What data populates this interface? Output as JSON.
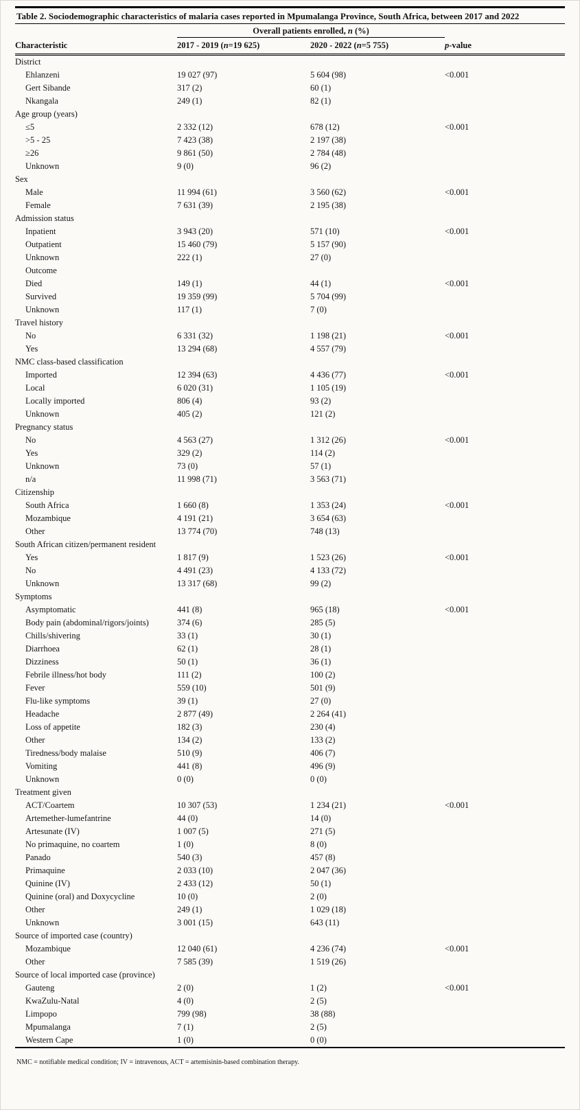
{
  "table": {
    "title": "Table 2. Sociodemographic characteristics of malaria cases reported in Mpumalanga Province, South Africa, between 2017 and 2022",
    "span_header": {
      "pre": "Overall patients enrolled, ",
      "n": "n",
      "post": " (%)"
    },
    "columns": {
      "characteristic": "Characteristic",
      "col1_pre": "2017 - 2019 (",
      "col1_n": "n",
      "col1_post": "=19 625)",
      "col2_pre": "2020 - 2022 (",
      "col2_n": "n",
      "col2_post": "=5 755)",
      "p_italic": "p",
      "p_rest": "-value"
    },
    "sections": [
      {
        "name": "District",
        "rows": [
          {
            "label": "Ehlanzeni",
            "c1": "19 027 (97)",
            "c2": "5 604 (98)",
            "p": "<0.001"
          },
          {
            "label": "Gert Sibande",
            "c1": "317 (2)",
            "c2": "60 (1)",
            "p": ""
          },
          {
            "label": "Nkangala",
            "c1": "249 (1)",
            "c2": "82 (1)",
            "p": ""
          }
        ]
      },
      {
        "name": "Age group (years)",
        "rows": [
          {
            "label": "≤5",
            "c1": "2 332 (12)",
            "c2": "678 (12)",
            "p": "<0.001"
          },
          {
            "label": ">5 - 25",
            "c1": "7 423 (38)",
            "c2": "2 197 (38)",
            "p": ""
          },
          {
            "label": "≥26",
            "c1": "9 861 (50)",
            "c2": "2 784 (48)",
            "p": ""
          },
          {
            "label": "Unknown",
            "c1": "9 (0)",
            "c2": "96 (2)",
            "p": ""
          }
        ]
      },
      {
        "name": "Sex",
        "rows": [
          {
            "label": "Male",
            "c1": "11 994 (61)",
            "c2": "3 560 (62)",
            "p": "<0.001"
          },
          {
            "label": "Female",
            "c1": "7 631 (39)",
            "c2": "2 195 (38)",
            "p": ""
          }
        ]
      },
      {
        "name": "Admission status",
        "rows": [
          {
            "label": "Inpatient",
            "c1": "3 943 (20)",
            "c2": "571 (10)",
            "p": "<0.001"
          },
          {
            "label": "Outpatient",
            "c1": "15 460 (79)",
            "c2": "5 157 (90)",
            "p": ""
          },
          {
            "label": "Unknown",
            "c1": "222 (1)",
            "c2": "27 (0)",
            "p": ""
          },
          {
            "label": "Outcome",
            "c1": "",
            "c2": "",
            "p": ""
          },
          {
            "label": "Died",
            "c1": "149 (1)",
            "c2": "44 (1)",
            "p": "<0.001"
          },
          {
            "label": "Survived",
            "c1": "19 359 (99)",
            "c2": "5 704 (99)",
            "p": ""
          },
          {
            "label": "Unknown",
            "c1": "117 (1)",
            "c2": "7 (0)",
            "p": ""
          }
        ]
      },
      {
        "name": "Travel history",
        "rows": [
          {
            "label": "No",
            "c1": "6 331 (32)",
            "c2": "1 198 (21)",
            "p": "<0.001"
          },
          {
            "label": "Yes",
            "c1": "13 294 (68)",
            "c2": "4 557 (79)",
            "p": ""
          }
        ]
      },
      {
        "name": "NMC class-based classification",
        "rows": [
          {
            "label": "Imported",
            "c1": "12 394 (63)",
            "c2": "4 436 (77)",
            "p": "<0.001"
          },
          {
            "label": "Local",
            "c1": "6 020 (31)",
            "c2": "1 105 (19)",
            "p": ""
          },
          {
            "label": "Locally imported",
            "c1": "806 (4)",
            "c2": "93 (2)",
            "p": ""
          },
          {
            "label": "Unknown",
            "c1": "405 (2)",
            "c2": "121 (2)",
            "p": ""
          }
        ]
      },
      {
        "name": "Pregnancy status",
        "rows": [
          {
            "label": "No",
            "c1": "4 563 (27)",
            "c2": "1 312 (26)",
            "p": "<0.001"
          },
          {
            "label": "Yes",
            "c1": "329 (2)",
            "c2": "114 (2)",
            "p": ""
          },
          {
            "label": "Unknown",
            "c1": "73 (0)",
            "c2": "57 (1)",
            "p": ""
          },
          {
            "label": "n/a",
            "c1": "11 998 (71)",
            "c2": "3 563 (71)",
            "p": ""
          }
        ]
      },
      {
        "name": "Citizenship",
        "rows": [
          {
            "label": "South Africa",
            "c1": "1 660 (8)",
            "c2": "1 353 (24)",
            "p": "<0.001"
          },
          {
            "label": "Mozambique",
            "c1": "4 191 (21)",
            "c2": "3 654 (63)",
            "p": ""
          },
          {
            "label": "Other",
            "c1": "13 774 (70)",
            "c2": "748 (13)",
            "p": ""
          }
        ]
      },
      {
        "name": "South African citizen/permanent resident",
        "rows": [
          {
            "label": "Yes",
            "c1": "1 817 (9)",
            "c2": "1 523 (26)",
            "p": "<0.001"
          },
          {
            "label": "No",
            "c1": "4 491 (23)",
            "c2": "4 133 (72)",
            "p": ""
          },
          {
            "label": "Unknown",
            "c1": "13 317 (68)",
            "c2": "99 (2)",
            "p": ""
          }
        ]
      },
      {
        "name": "Symptoms",
        "rows": [
          {
            "label": "Asymptomatic",
            "c1": "441 (8)",
            "c2": "965 (18)",
            "p": "<0.001"
          },
          {
            "label": "Body pain (abdominal/rigors/joints)",
            "c1": "374 (6)",
            "c2": "285 (5)",
            "p": ""
          },
          {
            "label": "Chills/shivering",
            "c1": "33 (1)",
            "c2": "30 (1)",
            "p": ""
          },
          {
            "label": "Diarrhoea",
            "c1": "62 (1)",
            "c2": "28 (1)",
            "p": ""
          },
          {
            "label": "Dizziness",
            "c1": "50 (1)",
            "c2": "36 (1)",
            "p": ""
          },
          {
            "label": "Febrile illness/hot body",
            "c1": "111 (2)",
            "c2": "100 (2)",
            "p": ""
          },
          {
            "label": "Fever",
            "c1": "559 (10)",
            "c2": "501 (9)",
            "p": ""
          },
          {
            "label": "Flu-like symptoms",
            "c1": "39 (1)",
            "c2": "27 (0)",
            "p": ""
          },
          {
            "label": "Headache",
            "c1": "2 877 (49)",
            "c2": "2 264 (41)",
            "p": ""
          },
          {
            "label": "Loss of appetite",
            "c1": "182 (3)",
            "c2": "230 (4)",
            "p": ""
          },
          {
            "label": "Other",
            "c1": "134 (2)",
            "c2": "133 (2)",
            "p": ""
          },
          {
            "label": "Tiredness/body malaise",
            "c1": "510 (9)",
            "c2": "406 (7)",
            "p": ""
          },
          {
            "label": "Vomiting",
            "c1": "441 (8)",
            "c2": "496 (9)",
            "p": ""
          },
          {
            "label": "Unknown",
            "c1": "0 (0)",
            "c2": "0 (0)",
            "p": ""
          }
        ]
      },
      {
        "name": "Treatment given",
        "rows": [
          {
            "label": "ACT/Coartem",
            "c1": "10 307 (53)",
            "c2": "1 234 (21)",
            "p": "<0.001"
          },
          {
            "label": "Artemether-lumefantrine",
            "c1": "44 (0)",
            "c2": "14 (0)",
            "p": ""
          },
          {
            "label": "Artesunate (IV)",
            "c1": "1 007 (5)",
            "c2": "271 (5)",
            "p": ""
          },
          {
            "label": "No primaquine, no coartem",
            "c1": "1 (0)",
            "c2": "8 (0)",
            "p": ""
          },
          {
            "label": "Panado",
            "c1": "540 (3)",
            "c2": "457 (8)",
            "p": ""
          },
          {
            "label": "Primaquine",
            "c1": "2 033 (10)",
            "c2": "2 047 (36)",
            "p": ""
          },
          {
            "label": "Quinine (IV)",
            "c1": "2 433 (12)",
            "c2": "50 (1)",
            "p": ""
          },
          {
            "label": "Quinine (oral) and Doxycycline",
            "c1": "10 (0)",
            "c2": "2 (0)",
            "p": ""
          },
          {
            "label": "Other",
            "c1": "249 (1)",
            "c2": "1 029 (18)",
            "p": ""
          },
          {
            "label": "Unknown",
            "c1": "3 001 (15)",
            "c2": "643 (11)",
            "p": ""
          }
        ]
      },
      {
        "name": "Source of imported case (country)",
        "rows": [
          {
            "label": "Mozambique",
            "c1": "12 040 (61)",
            "c2": "4 236 (74)",
            "p": "<0.001"
          },
          {
            "label": "Other",
            "c1": "7 585 (39)",
            "c2": "1 519 (26)",
            "p": ""
          }
        ]
      },
      {
        "name": "Source of local imported case (province)",
        "rows": [
          {
            "label": "Gauteng",
            "c1": "2 (0)",
            "c2": "1 (2)",
            "p": "<0.001"
          },
          {
            "label": "KwaZulu-Natal",
            "c1": "4 (0)",
            "c2": "2 (5)",
            "p": ""
          },
          {
            "label": "Limpopo",
            "c1": "799 (98)",
            "c2": "38 (88)",
            "p": ""
          },
          {
            "label": "Mpumalanga",
            "c1": "7 (1)",
            "c2": "2 (5)",
            "p": ""
          },
          {
            "label": "Western Cape",
            "c1": "1 (0)",
            "c2": "0 (0)",
            "p": ""
          }
        ]
      }
    ],
    "footnote": "NMC = notifiable medical condition; IV = intravenous, ACT = artemisinin-based combination therapy."
  }
}
